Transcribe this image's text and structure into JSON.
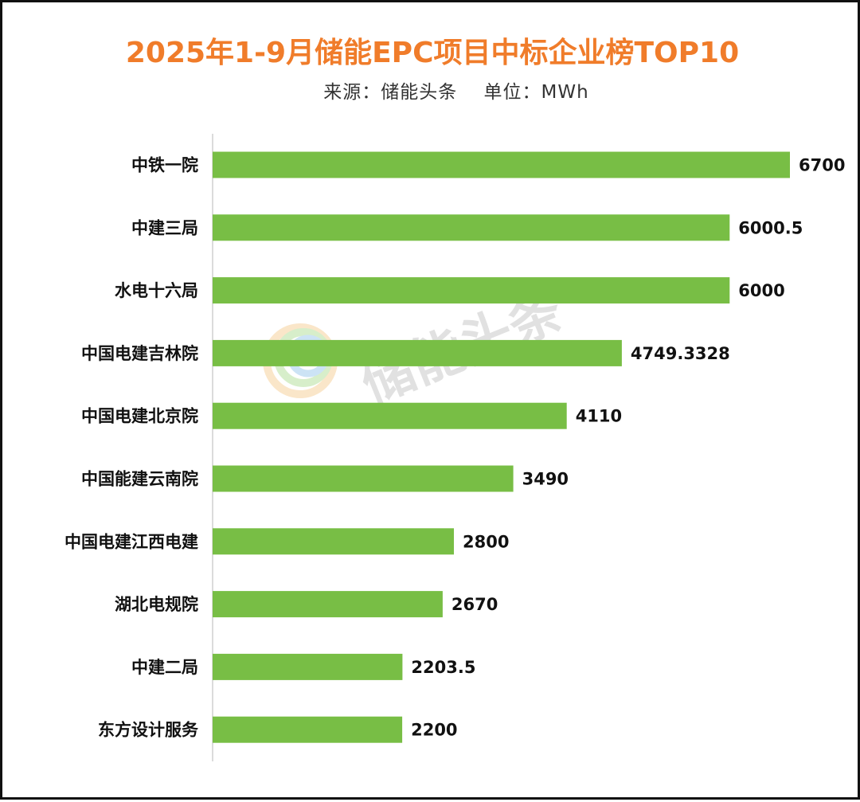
{
  "title": "2025年1-9月储能EPC项目中标企业榜TOP10",
  "subtitle": "来源：储能头条    单位：MWh",
  "watermark": {
    "text": "储能头条",
    "icon": "logo-circle-icon"
  },
  "colors": {
    "title": "#f07c2a",
    "bar": "#78be45",
    "axis": "#cfcfcf",
    "text": "#111111"
  },
  "chart_data": {
    "type": "bar",
    "orientation": "horizontal",
    "title": "2025年1-9月储能EPC项目中标企业榜TOP10",
    "subtitle": "来源：储能头条    单位：MWh",
    "categories": [
      "中铁一院",
      "中建三局",
      "水电十六局",
      "中国电建吉林院",
      "中国电建北京院",
      "中国能建云南院",
      "中国电建江西电建",
      "湖北电规院",
      "中建二局",
      "东方设计服务"
    ],
    "values": [
      6700,
      6000.5,
      6000,
      4749.3328,
      4110,
      3490,
      2800,
      2670,
      2203.5,
      2200
    ],
    "value_labels": [
      "6700",
      "6000.5",
      "6000",
      "4749.3328",
      "4110",
      "3490",
      "2800",
      "2670",
      "2203.5",
      "2200"
    ],
    "xlim": [
      0,
      6700
    ],
    "grid": false,
    "legend": "none"
  }
}
